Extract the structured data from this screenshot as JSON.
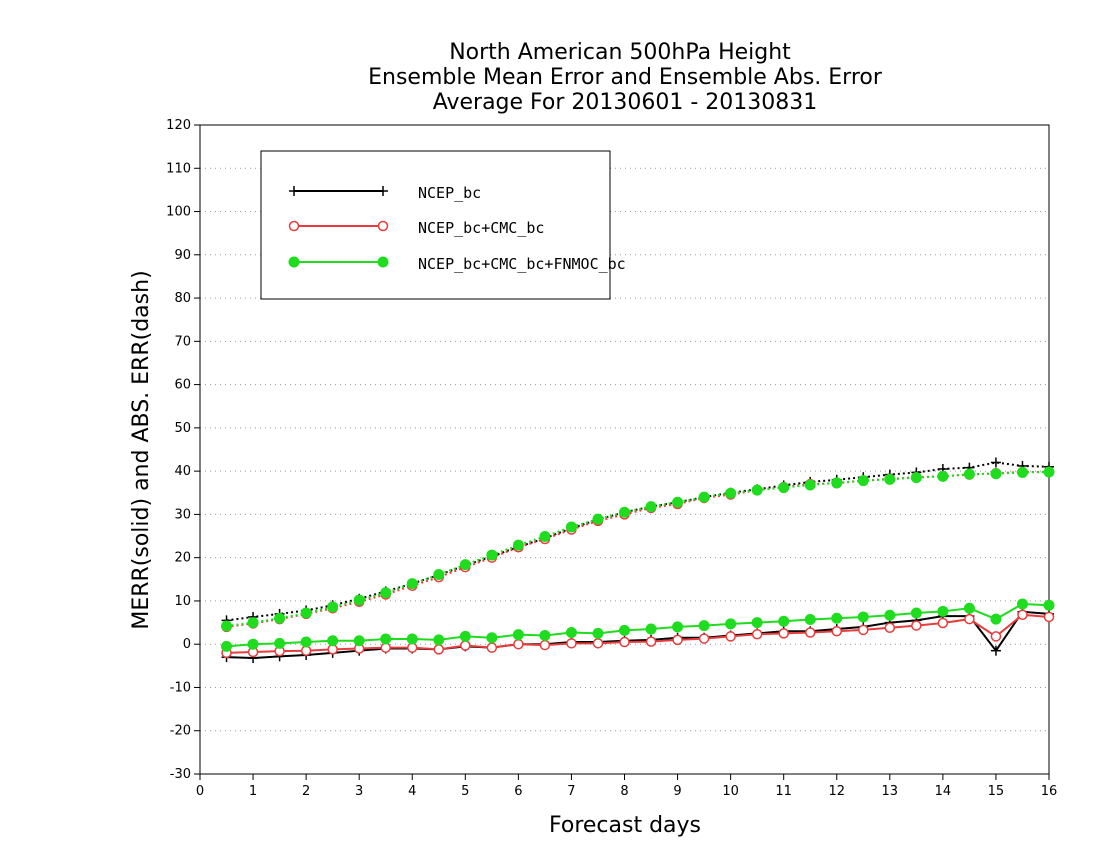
{
  "chart_data": {
    "type": "line",
    "title_lines": [
      "North American 500hPa Height",
      "Ensemble Mean Error and Ensemble Abs. Error",
      "Average For 20130601 - 20130831"
    ],
    "xlabel": "Forecast days",
    "ylabel": "MERR(solid) and ABS. ERR(dash)",
    "xlim": [
      0,
      16
    ],
    "ylim": [
      -30,
      120
    ],
    "xticks": [
      0,
      1,
      2,
      3,
      4,
      5,
      6,
      7,
      8,
      9,
      10,
      11,
      12,
      13,
      14,
      15,
      16
    ],
    "yticks": [
      -30,
      -20,
      -10,
      0,
      10,
      20,
      30,
      40,
      50,
      60,
      70,
      80,
      90,
      100,
      110,
      120
    ],
    "grid": true,
    "legend_position": "top-left",
    "x": [
      0.5,
      1,
      1.5,
      2,
      2.5,
      3,
      3.5,
      4,
      4.5,
      5,
      5.5,
      6,
      6.5,
      7,
      7.5,
      8,
      8.5,
      9,
      9.5,
      10,
      10.5,
      11,
      11.5,
      12,
      12.5,
      13,
      13.5,
      14,
      14.5,
      15,
      15.5,
      16
    ],
    "series": [
      {
        "name": "NCEP_bc",
        "color": "#000000",
        "marker": "plus",
        "merr": [
          -3,
          -3.2,
          -2.8,
          -2.5,
          -2,
          -1.5,
          -1,
          -1,
          -1.2,
          -0.5,
          -0.8,
          0,
          0,
          0.5,
          0.5,
          0.8,
          1,
          1.5,
          1.5,
          2,
          2.5,
          3,
          3,
          3.5,
          4,
          5,
          5.5,
          6.5,
          6.5,
          -1.5,
          7.5,
          7
        ],
        "abserr": [
          5.5,
          6.3,
          7,
          7.8,
          9,
          10.5,
          12.2,
          14,
          16,
          18.2,
          20.3,
          22.5,
          24.5,
          26.8,
          28.8,
          30.5,
          31.8,
          32.8,
          34,
          35,
          35.8,
          36.7,
          37.5,
          38,
          38.6,
          39.2,
          39.7,
          40.5,
          40.8,
          42,
          41.2,
          41
        ]
      },
      {
        "name": "NCEP_bc+CMC_bc",
        "color": "#e83c3c",
        "marker": "open-circle",
        "merr": [
          -2,
          -1.8,
          -1.6,
          -1.5,
          -1.2,
          -1,
          -0.8,
          -0.8,
          -1.2,
          -0.3,
          -0.8,
          0,
          -0.2,
          0.2,
          0.2,
          0.5,
          0.6,
          1,
          1.3,
          1.8,
          2.3,
          2.5,
          2.7,
          3,
          3.3,
          3.8,
          4.3,
          4.9,
          5.8,
          1.8,
          6.8,
          6.3
        ],
        "abserr": [
          4,
          4.8,
          5.8,
          7,
          8.3,
          9.8,
          11.5,
          13.5,
          15.5,
          17.8,
          20,
          22.4,
          24.3,
          26.5,
          28.5,
          30,
          31.5,
          32.4,
          33.8,
          34.6,
          35.6,
          36.3,
          37,
          37.2,
          37.8,
          38.2,
          38.6,
          38.8,
          39.2,
          39.5,
          39.8,
          39.8
        ]
      },
      {
        "name": "NCEP_bc+CMC_bc+FNMOC_bc",
        "color": "#1fdc1f",
        "marker": "filled-circle",
        "merr": [
          -0.5,
          0,
          0.2,
          0.5,
          0.8,
          0.8,
          1.2,
          1.2,
          1,
          1.8,
          1.5,
          2.2,
          2,
          2.7,
          2.5,
          3.2,
          3.5,
          4,
          4.3,
          4.7,
          5,
          5.3,
          5.7,
          6,
          6.3,
          6.7,
          7.2,
          7.6,
          8.3,
          5.8,
          9.3,
          9
        ],
        "abserr": [
          4.2,
          5,
          6,
          7.2,
          8.6,
          10.2,
          11.9,
          14,
          16.1,
          18.4,
          20.6,
          22.9,
          24.9,
          27.1,
          28.9,
          30.5,
          31.8,
          32.8,
          34,
          34.9,
          35.6,
          36.2,
          36.8,
          37.3,
          37.8,
          38.1,
          38.5,
          38.8,
          39.3,
          39.4,
          39.7,
          39.8
        ]
      }
    ]
  }
}
